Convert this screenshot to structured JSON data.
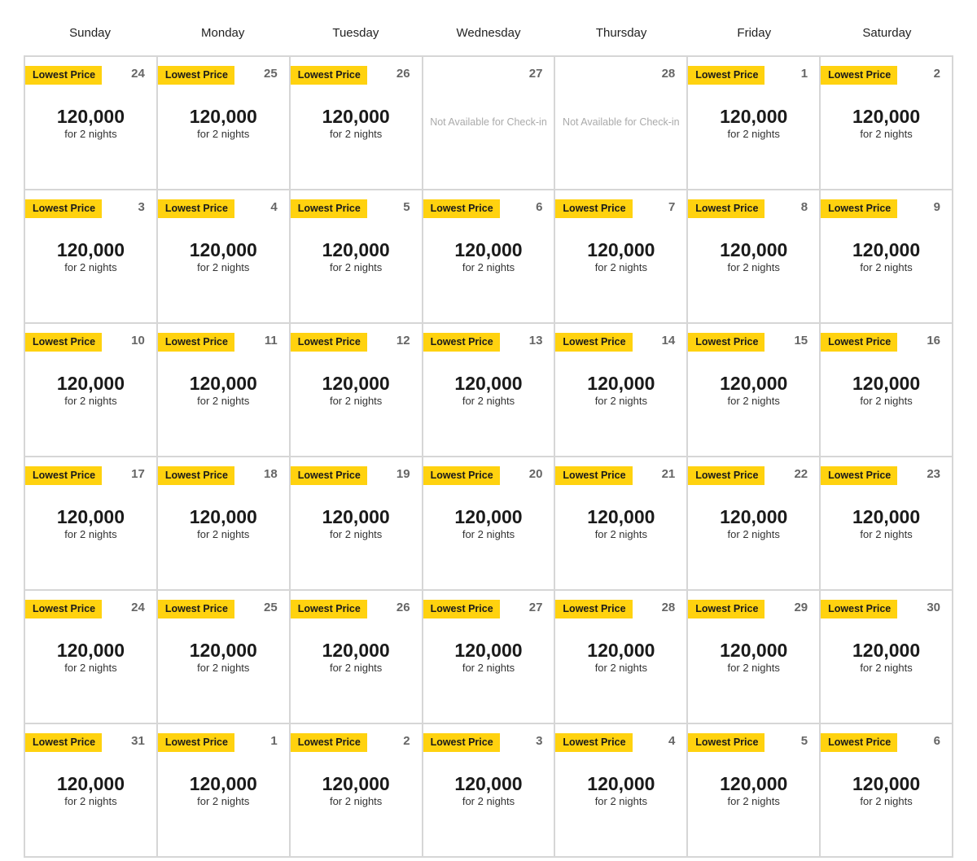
{
  "weekdays": [
    "Sunday",
    "Monday",
    "Tuesday",
    "Wednesday",
    "Thursday",
    "Friday",
    "Saturday"
  ],
  "labels": {
    "badge": "Lowest Price",
    "unavailable": "Not Available for Check-in"
  },
  "colors": {
    "badge": "#ffd20f",
    "border": "#d6d6d6"
  },
  "weeks": [
    [
      {
        "day": "24",
        "available": true,
        "badge": "Lowest Price",
        "price": "120,000",
        "nights": "for 2 nights"
      },
      {
        "day": "25",
        "available": true,
        "badge": "Lowest Price",
        "price": "120,000",
        "nights": "for 2 nights"
      },
      {
        "day": "26",
        "available": true,
        "badge": "Lowest Price",
        "price": "120,000",
        "nights": "for 2 nights"
      },
      {
        "day": "27",
        "available": false,
        "note": "Not Available for Check-in"
      },
      {
        "day": "28",
        "available": false,
        "note": "Not Available for Check-in"
      },
      {
        "day": "1",
        "available": true,
        "badge": "Lowest Price",
        "price": "120,000",
        "nights": "for 2 nights"
      },
      {
        "day": "2",
        "available": true,
        "badge": "Lowest Price",
        "price": "120,000",
        "nights": "for 2 nights"
      }
    ],
    [
      {
        "day": "3",
        "available": true,
        "badge": "Lowest Price",
        "price": "120,000",
        "nights": "for 2 nights"
      },
      {
        "day": "4",
        "available": true,
        "badge": "Lowest Price",
        "price": "120,000",
        "nights": "for 2 nights"
      },
      {
        "day": "5",
        "available": true,
        "badge": "Lowest Price",
        "price": "120,000",
        "nights": "for 2 nights"
      },
      {
        "day": "6",
        "available": true,
        "badge": "Lowest Price",
        "price": "120,000",
        "nights": "for 2 nights"
      },
      {
        "day": "7",
        "available": true,
        "badge": "Lowest Price",
        "price": "120,000",
        "nights": "for 2 nights"
      },
      {
        "day": "8",
        "available": true,
        "badge": "Lowest Price",
        "price": "120,000",
        "nights": "for 2 nights"
      },
      {
        "day": "9",
        "available": true,
        "badge": "Lowest Price",
        "price": "120,000",
        "nights": "for 2 nights"
      }
    ],
    [
      {
        "day": "10",
        "available": true,
        "badge": "Lowest Price",
        "price": "120,000",
        "nights": "for 2 nights"
      },
      {
        "day": "11",
        "available": true,
        "badge": "Lowest Price",
        "price": "120,000",
        "nights": "for 2 nights"
      },
      {
        "day": "12",
        "available": true,
        "badge": "Lowest Price",
        "price": "120,000",
        "nights": "for 2 nights"
      },
      {
        "day": "13",
        "available": true,
        "badge": "Lowest Price",
        "price": "120,000",
        "nights": "for 2 nights"
      },
      {
        "day": "14",
        "available": true,
        "badge": "Lowest Price",
        "price": "120,000",
        "nights": "for 2 nights"
      },
      {
        "day": "15",
        "available": true,
        "badge": "Lowest Price",
        "price": "120,000",
        "nights": "for 2 nights"
      },
      {
        "day": "16",
        "available": true,
        "badge": "Lowest Price",
        "price": "120,000",
        "nights": "for 2 nights"
      }
    ],
    [
      {
        "day": "17",
        "available": true,
        "badge": "Lowest Price",
        "price": "120,000",
        "nights": "for 2 nights"
      },
      {
        "day": "18",
        "available": true,
        "badge": "Lowest Price",
        "price": "120,000",
        "nights": "for 2 nights"
      },
      {
        "day": "19",
        "available": true,
        "badge": "Lowest Price",
        "price": "120,000",
        "nights": "for 2 nights"
      },
      {
        "day": "20",
        "available": true,
        "badge": "Lowest Price",
        "price": "120,000",
        "nights": "for 2 nights"
      },
      {
        "day": "21",
        "available": true,
        "badge": "Lowest Price",
        "price": "120,000",
        "nights": "for 2 nights"
      },
      {
        "day": "22",
        "available": true,
        "badge": "Lowest Price",
        "price": "120,000",
        "nights": "for 2 nights"
      },
      {
        "day": "23",
        "available": true,
        "badge": "Lowest Price",
        "price": "120,000",
        "nights": "for 2 nights"
      }
    ],
    [
      {
        "day": "24",
        "available": true,
        "badge": "Lowest Price",
        "price": "120,000",
        "nights": "for 2 nights"
      },
      {
        "day": "25",
        "available": true,
        "badge": "Lowest Price",
        "price": "120,000",
        "nights": "for 2 nights"
      },
      {
        "day": "26",
        "available": true,
        "badge": "Lowest Price",
        "price": "120,000",
        "nights": "for 2 nights"
      },
      {
        "day": "27",
        "available": true,
        "badge": "Lowest Price",
        "price": "120,000",
        "nights": "for 2 nights"
      },
      {
        "day": "28",
        "available": true,
        "badge": "Lowest Price",
        "price": "120,000",
        "nights": "for 2 nights"
      },
      {
        "day": "29",
        "available": true,
        "badge": "Lowest Price",
        "price": "120,000",
        "nights": "for 2 nights"
      },
      {
        "day": "30",
        "available": true,
        "badge": "Lowest Price",
        "price": "120,000",
        "nights": "for 2 nights"
      }
    ],
    [
      {
        "day": "31",
        "available": true,
        "badge": "Lowest Price",
        "price": "120,000",
        "nights": "for 2 nights"
      },
      {
        "day": "1",
        "available": true,
        "badge": "Lowest Price",
        "price": "120,000",
        "nights": "for 2 nights"
      },
      {
        "day": "2",
        "available": true,
        "badge": "Lowest Price",
        "price": "120,000",
        "nights": "for 2 nights"
      },
      {
        "day": "3",
        "available": true,
        "badge": "Lowest Price",
        "price": "120,000",
        "nights": "for 2 nights"
      },
      {
        "day": "4",
        "available": true,
        "badge": "Lowest Price",
        "price": "120,000",
        "nights": "for 2 nights"
      },
      {
        "day": "5",
        "available": true,
        "badge": "Lowest Price",
        "price": "120,000",
        "nights": "for 2 nights"
      },
      {
        "day": "6",
        "available": true,
        "badge": "Lowest Price",
        "price": "120,000",
        "nights": "for 2 nights"
      }
    ]
  ]
}
